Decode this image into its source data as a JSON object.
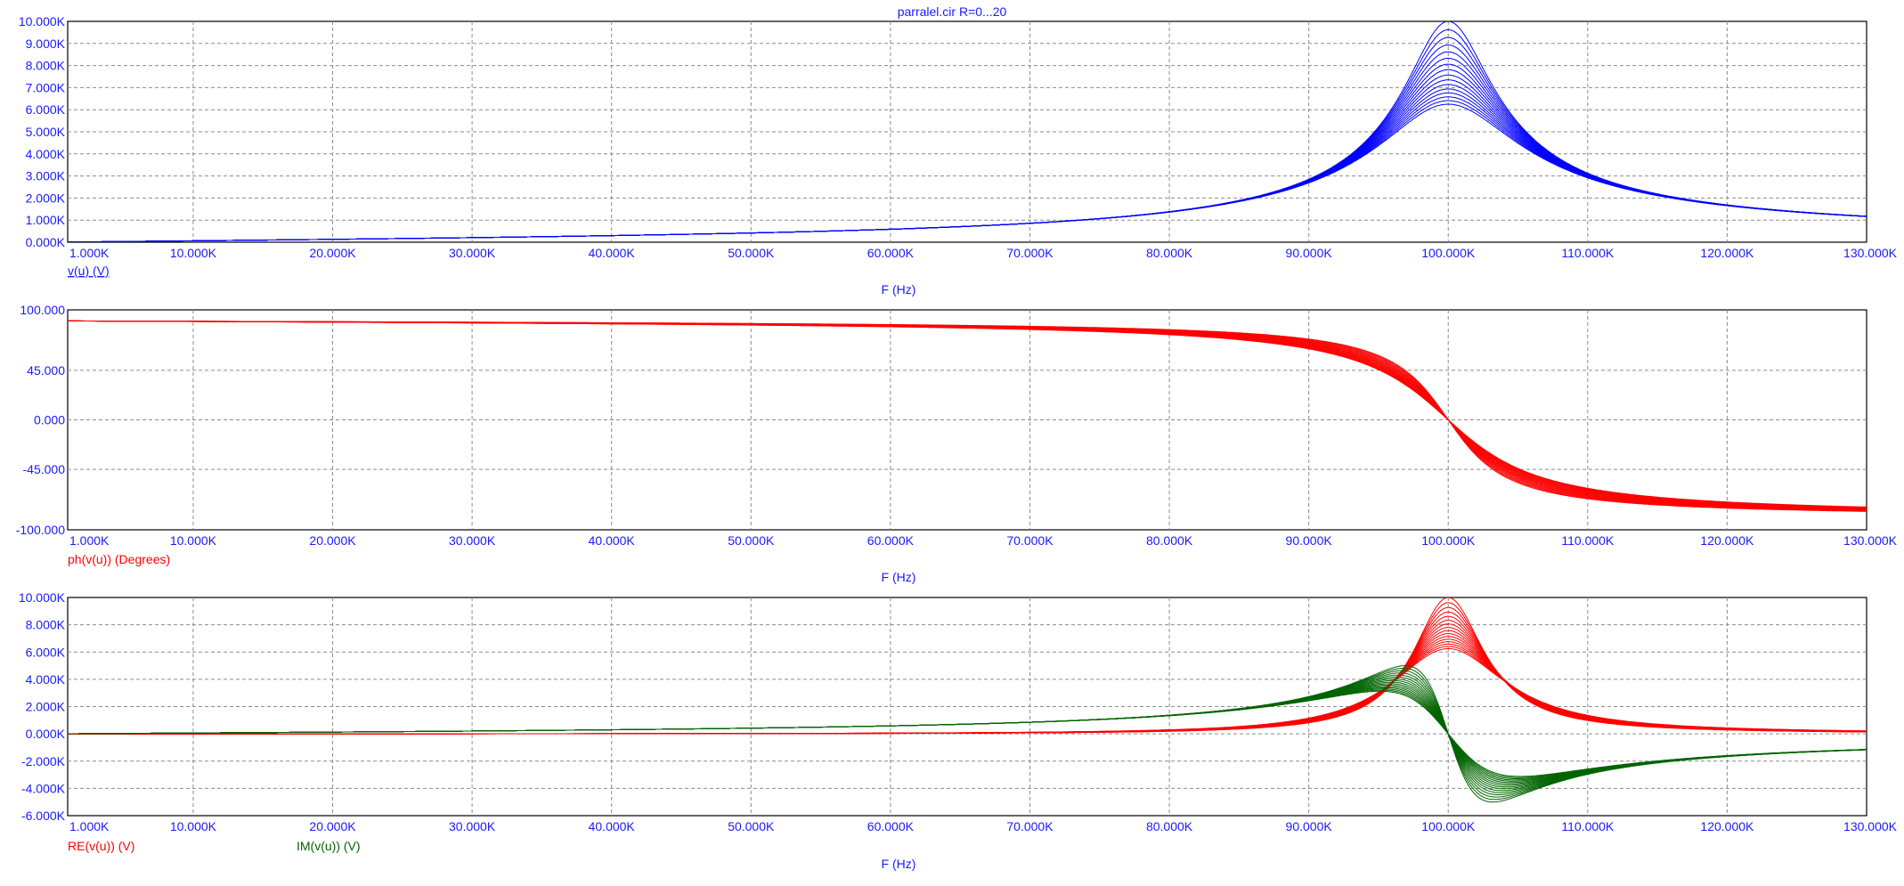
{
  "title": "parralel.cir R=0...20",
  "colors": {
    "axis_text": "#1a1aff",
    "magnitude": "#0000ff",
    "phase": "#ff0000",
    "real": "#ff0000",
    "imag": "#006400",
    "grid": "#8c8c8c",
    "frame": "#000000"
  },
  "chart_data": [
    {
      "type": "line",
      "id": "magnitude",
      "xlabel": "F (Hz)",
      "xlim": [
        1000,
        130000
      ],
      "x_ticks": [
        1000,
        10000,
        20000,
        30000,
        40000,
        50000,
        60000,
        70000,
        80000,
        90000,
        100000,
        110000,
        120000,
        130000
      ],
      "x_tick_labels": [
        "1.000K",
        "10.000K",
        "20.000K",
        "30.000K",
        "40.000K",
        "50.000K",
        "60.000K",
        "70.000K",
        "80.000K",
        "90.000K",
        "100.000K",
        "110.000K",
        "120.000K",
        "130.000K"
      ],
      "ylim": [
        0,
        10000
      ],
      "y_ticks": [
        0,
        1000,
        2000,
        3000,
        4000,
        5000,
        6000,
        7000,
        8000,
        9000,
        10000
      ],
      "y_tick_labels": [
        "0.000K",
        "1.000K",
        "2.000K",
        "3.000K",
        "4.000K",
        "5.000K",
        "6.000K",
        "7.000K",
        "8.000K",
        "9.000K",
        "10.000K"
      ],
      "grid": true,
      "legend": [
        {
          "label": "v(u) (V)",
          "color": "#0000ff"
        }
      ],
      "circuit": {
        "f0": 100000,
        "peak_values": [
          10000,
          9620,
          9270,
          8930,
          8620,
          8330,
          8060,
          7810,
          7570,
          7350,
          7140,
          6940,
          6760,
          6580,
          6410,
          6250
        ]
      }
    },
    {
      "type": "line",
      "id": "phase",
      "xlabel": "F (Hz)",
      "xlim": [
        1000,
        130000
      ],
      "x_ticks": [
        1000,
        10000,
        20000,
        30000,
        40000,
        50000,
        60000,
        70000,
        80000,
        90000,
        100000,
        110000,
        120000,
        130000
      ],
      "x_tick_labels": [
        "1.000K",
        "10.000K",
        "20.000K",
        "30.000K",
        "40.000K",
        "50.000K",
        "60.000K",
        "70.000K",
        "80.000K",
        "90.000K",
        "100.000K",
        "110.000K",
        "120.000K",
        "130.000K"
      ],
      "ylim": [
        -100,
        100
      ],
      "y_ticks": [
        -100,
        -45,
        0,
        45,
        100
      ],
      "y_tick_labels": [
        "-100.000",
        "-45.000",
        "0.000",
        "45.000",
        "100.000"
      ],
      "grid": true,
      "legend": [
        {
          "label": "ph(v(u)) (Degrees)",
          "color": "#ff0000"
        }
      ]
    },
    {
      "type": "line",
      "id": "real-imag",
      "xlabel": "F (Hz)",
      "xlim": [
        1000,
        130000
      ],
      "x_ticks": [
        1000,
        10000,
        20000,
        30000,
        40000,
        50000,
        60000,
        70000,
        80000,
        90000,
        100000,
        110000,
        120000,
        130000
      ],
      "x_tick_labels": [
        "1.000K",
        "10.000K",
        "20.000K",
        "30.000K",
        "40.000K",
        "50.000K",
        "60.000K",
        "70.000K",
        "80.000K",
        "90.000K",
        "100.000K",
        "110.000K",
        "120.000K",
        "130.000K"
      ],
      "ylim": [
        -6000,
        10000
      ],
      "y_ticks": [
        -6000,
        -4000,
        -2000,
        0,
        2000,
        4000,
        6000,
        8000,
        10000
      ],
      "y_tick_labels": [
        "-6.000K",
        "-4.000K",
        "-2.000K",
        "0.000K",
        "2.000K",
        "4.000K",
        "6.000K",
        "8.000K",
        "10.000K"
      ],
      "grid": true,
      "legend": [
        {
          "label": "RE(v(u)) (V)",
          "color": "#ff0000"
        },
        {
          "label": "IM(v(u)) (V)",
          "color": "#006400"
        }
      ]
    }
  ]
}
